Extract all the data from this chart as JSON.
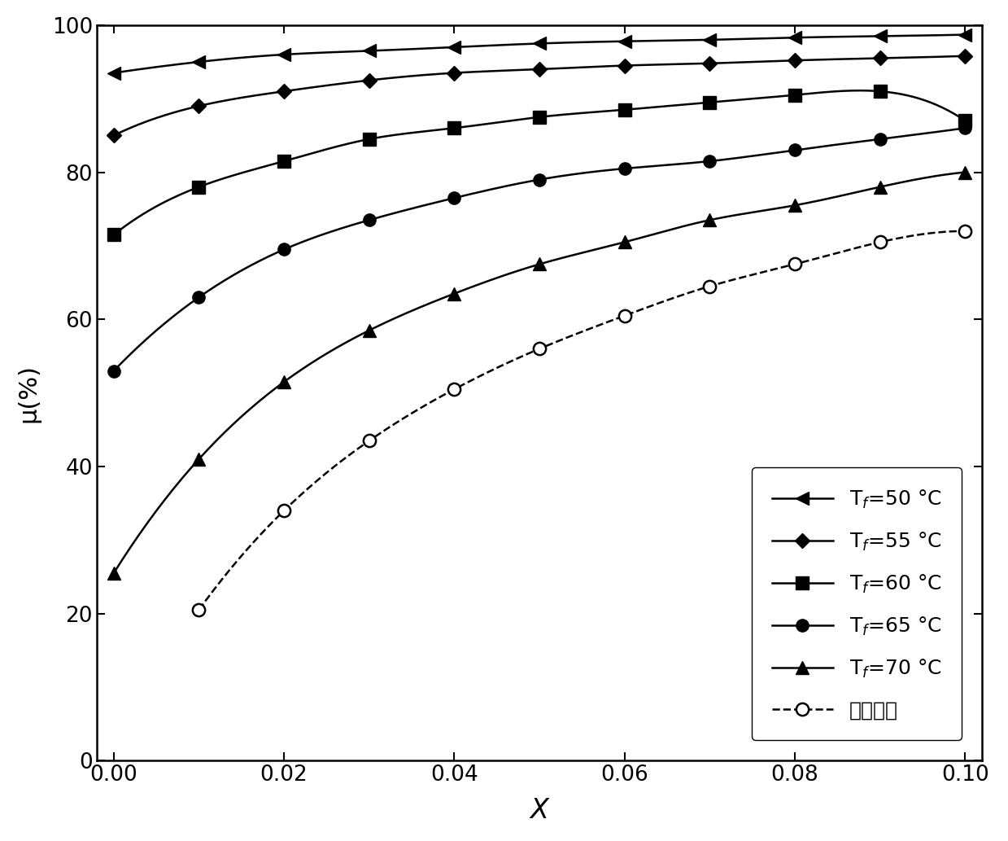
{
  "series": [
    {
      "label": "T_f=50°C",
      "x": [
        0.0,
        0.01,
        0.02,
        0.03,
        0.04,
        0.05,
        0.06,
        0.07,
        0.08,
        0.09,
        0.1
      ],
      "y": [
        93.5,
        95.0,
        96.0,
        96.5,
        97.0,
        97.5,
        97.8,
        98.0,
        98.3,
        98.5,
        98.7
      ],
      "marker": "left_arrow",
      "linestyle": "-",
      "color": "#000000"
    },
    {
      "label": "T_f=55°C",
      "x": [
        0.0,
        0.01,
        0.02,
        0.03,
        0.04,
        0.05,
        0.06,
        0.07,
        0.08,
        0.09,
        0.1
      ],
      "y": [
        85.0,
        89.0,
        91.0,
        92.5,
        93.5,
        94.0,
        94.5,
        94.8,
        95.2,
        95.5,
        95.8
      ],
      "marker": "diamond",
      "linestyle": "-",
      "color": "#000000"
    },
    {
      "label": "T_f=60°C",
      "x": [
        0.0,
        0.01,
        0.02,
        0.03,
        0.04,
        0.05,
        0.06,
        0.07,
        0.08,
        0.09,
        0.1
      ],
      "y": [
        71.5,
        78.0,
        81.5,
        84.5,
        86.0,
        87.5,
        88.5,
        89.5,
        90.5,
        91.0,
        87.0
      ],
      "marker": "square",
      "linestyle": "-",
      "color": "#000000"
    },
    {
      "label": "T_f=65°C",
      "x": [
        0.0,
        0.01,
        0.02,
        0.03,
        0.04,
        0.05,
        0.06,
        0.07,
        0.08,
        0.09,
        0.1
      ],
      "y": [
        53.0,
        63.0,
        69.5,
        73.5,
        76.5,
        79.0,
        80.5,
        81.5,
        83.0,
        84.5,
        86.0
      ],
      "marker": "circle",
      "linestyle": "-",
      "color": "#000000"
    },
    {
      "label": "T_f=70°C",
      "x": [
        0.0,
        0.01,
        0.02,
        0.03,
        0.04,
        0.05,
        0.06,
        0.07,
        0.08,
        0.09,
        0.1
      ],
      "y": [
        25.5,
        41.0,
        51.5,
        58.5,
        63.5,
        67.5,
        70.5,
        73.5,
        75.5,
        78.0,
        80.0
      ],
      "marker": "triangle_up",
      "linestyle": "-",
      "color": "#000000"
    },
    {
      "label": "水回收线",
      "x": [
        0.01,
        0.02,
        0.03,
        0.04,
        0.05,
        0.06,
        0.07,
        0.08,
        0.09,
        0.1
      ],
      "y": [
        20.5,
        34.0,
        43.5,
        50.5,
        56.0,
        60.5,
        64.5,
        67.5,
        70.5,
        72.0
      ],
      "marker": "circle_open",
      "linestyle": "--",
      "color": "#000000"
    }
  ],
  "xlabel": "X",
  "ylabel": "μ(%)",
  "xlim": [
    0.0,
    0.1
  ],
  "ylim": [
    0,
    100
  ],
  "xticks": [
    0.0,
    0.02,
    0.04,
    0.06,
    0.08,
    0.1
  ],
  "yticks": [
    0,
    20,
    40,
    60,
    80,
    100
  ],
  "legend_labels_raw": [
    "T$_f$=50 °C",
    "T$_f$=55 °C",
    "T$_f$=60 °C",
    "T$_f$=65 °C",
    "T$_f$=70 °C",
    "水回收线"
  ],
  "background_color": "#ffffff",
  "fontsize_ticks": 19,
  "fontsize_labels": 22,
  "fontsize_legend": 18,
  "linewidth": 1.8,
  "markersize": 11
}
